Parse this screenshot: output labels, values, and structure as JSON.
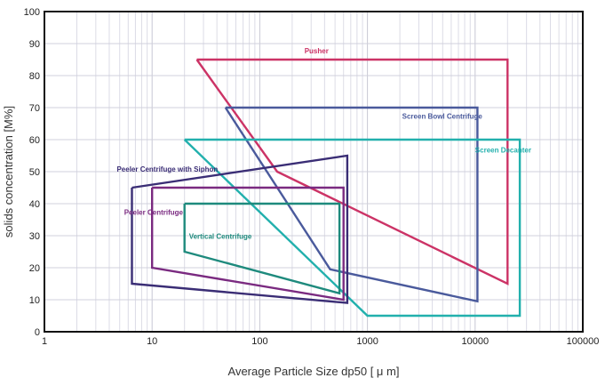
{
  "chart_data": {
    "type": "line",
    "title": "",
    "xlabel": "Average Particle Size dp50 [ μ m]",
    "ylabel": "solids concentration [M%]",
    "x_scale": "log",
    "xlim": [
      1,
      100000
    ],
    "ylim": [
      0,
      100
    ],
    "x_ticks": [
      1,
      10,
      100,
      1000,
      10000,
      100000
    ],
    "x_tick_labels": [
      "1",
      "10",
      "100",
      "1000",
      "10000",
      "100000"
    ],
    "y_ticks": [
      0,
      10,
      20,
      30,
      40,
      50,
      60,
      70,
      80,
      90,
      100
    ],
    "grid": true,
    "legend": "none",
    "series": [
      {
        "name": "Pusher",
        "color": "#cc3366",
        "points": [
          [
            26,
            85
          ],
          [
            20000,
            85
          ],
          [
            20000,
            15
          ],
          [
            145,
            50
          ],
          [
            26,
            85
          ]
        ],
        "label_at": [
          260,
          87
        ]
      },
      {
        "name": "Screen Bowl Centrifuge",
        "color": "#4a5a9c",
        "points": [
          [
            48,
            70
          ],
          [
            10500,
            70
          ],
          [
            10500,
            9.5
          ],
          [
            450,
            19.5
          ],
          [
            48,
            70
          ]
        ],
        "label_at": [
          2100,
          66.5
        ]
      },
      {
        "name": "Screen Decanter",
        "color": "#22b0ad",
        "points": [
          [
            20,
            60
          ],
          [
            26000,
            60
          ],
          [
            26000,
            5
          ],
          [
            1000,
            5
          ],
          [
            20,
            60
          ]
        ],
        "label_at": [
          10000,
          56
        ]
      },
      {
        "name": "Peeler Centrifuge with Siphon",
        "color": "#3a2d75",
        "points": [
          [
            6.5,
            45
          ],
          [
            650,
            55
          ],
          [
            650,
            9
          ],
          [
            6.5,
            15
          ],
          [
            6.5,
            45
          ]
        ],
        "label_at": [
          4.7,
          50
        ]
      },
      {
        "name": "Peeler Centrifuge",
        "color": "#7a2a80",
        "points": [
          [
            10,
            45
          ],
          [
            600,
            45
          ],
          [
            600,
            10
          ],
          [
            10,
            20
          ],
          [
            10,
            45
          ]
        ],
        "label_at": [
          5.5,
          36.5
        ]
      },
      {
        "name": "Vertical Centrifuge",
        "color": "#1e8a7d",
        "points": [
          [
            20,
            40
          ],
          [
            550,
            40
          ],
          [
            550,
            12
          ],
          [
            20,
            25
          ],
          [
            20,
            40
          ]
        ],
        "label_at": [
          22,
          29
        ]
      }
    ]
  }
}
